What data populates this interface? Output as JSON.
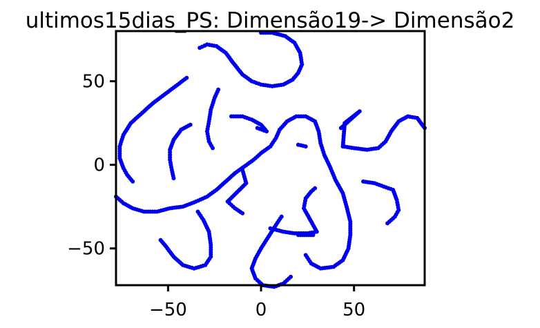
{
  "chart_data": {
    "type": "scatter",
    "title": "ultimos15dias_PS: Dimensão19-> Dimensão2",
    "xlabel": "",
    "ylabel": "",
    "xlim": [
      -78,
      88
    ],
    "ylim": [
      -72,
      80
    ],
    "xticks": [
      -50,
      0,
      50
    ],
    "xtick_labels": [
      "−50",
      "0",
      "50"
    ],
    "yticks": [
      -50,
      0,
      50
    ],
    "ytick_labels": [
      "−50",
      "0",
      "50"
    ],
    "grid": false,
    "legend": "none",
    "point_color": "#0000ee",
    "series": [
      {
        "points": [
          [
            -40,
            52
          ],
          [
            -46,
            47
          ],
          [
            -52,
            42
          ],
          [
            -58,
            37
          ],
          [
            -64,
            31
          ],
          [
            -70,
            25
          ],
          [
            -74,
            18
          ],
          [
            -76,
            11
          ],
          [
            -76,
            4
          ],
          [
            -74,
            -2
          ],
          [
            -72,
            -6
          ],
          [
            -69,
            -10
          ],
          [
            -23,
            45
          ],
          [
            -25,
            40
          ],
          [
            -27,
            33
          ],
          [
            -28,
            26
          ],
          [
            -29,
            20
          ],
          [
            -28,
            14
          ],
          [
            -26,
            10
          ],
          [
            -33,
            70
          ],
          [
            -29,
            72
          ],
          [
            -24,
            71
          ],
          [
            -19,
            67
          ],
          [
            -15,
            61
          ],
          [
            -10,
            54
          ],
          [
            -5,
            50
          ],
          [
            0,
            48
          ],
          [
            6,
            47
          ],
          [
            12,
            48
          ],
          [
            17,
            51
          ],
          [
            20,
            55
          ],
          [
            22,
            60
          ],
          [
            21,
            67
          ],
          [
            18,
            73
          ],
          [
            13,
            77
          ],
          [
            6,
            79
          ],
          [
            0,
            79
          ],
          [
            -38,
            24
          ],
          [
            -43,
            21
          ],
          [
            -47,
            15
          ],
          [
            -49,
            9
          ],
          [
            -49,
            3
          ],
          [
            -48,
            -3
          ],
          [
            -47,
            -8
          ],
          [
            -16,
            29
          ],
          [
            -10,
            29
          ],
          [
            -5,
            27
          ],
          [
            0,
            24
          ],
          [
            3,
            20
          ],
          [
            -2,
            22
          ],
          [
            -78,
            -19
          ],
          [
            -74,
            -23
          ],
          [
            -69,
            -26
          ],
          [
            -63,
            -28
          ],
          [
            -56,
            -28
          ],
          [
            -49,
            -26
          ],
          [
            -42,
            -25
          ],
          [
            -35,
            -22
          ],
          [
            -29,
            -19
          ],
          [
            -24,
            -15
          ],
          [
            -19,
            -10
          ],
          [
            -14,
            -5
          ],
          [
            -9,
            -1
          ],
          [
            -4,
            3
          ],
          [
            0,
            7
          ],
          [
            5,
            11
          ],
          [
            8,
            16
          ],
          [
            10,
            21
          ],
          [
            14,
            26
          ],
          [
            19,
            29
          ],
          [
            24,
            29
          ],
          [
            29,
            26
          ],
          [
            31,
            20
          ],
          [
            32,
            13
          ],
          [
            34,
            6
          ],
          [
            37,
            -1
          ],
          [
            40,
            -9
          ],
          [
            44,
            -17
          ],
          [
            46,
            -25
          ],
          [
            48,
            -34
          ],
          [
            48,
            -42
          ],
          [
            47,
            -50
          ],
          [
            44,
            -57
          ],
          [
            39,
            -61
          ],
          [
            32,
            -62
          ],
          [
            27,
            -59
          ],
          [
            24,
            -54
          ],
          [
            -10,
            -3
          ],
          [
            -9,
            -7
          ],
          [
            -8,
            -11
          ],
          [
            -18,
            -22
          ],
          [
            -14,
            -26
          ],
          [
            -10,
            -29
          ],
          [
            -34,
            -28
          ],
          [
            -31,
            -33
          ],
          [
            -28,
            -40
          ],
          [
            -27,
            -48
          ],
          [
            -27,
            -55
          ],
          [
            -30,
            -60
          ],
          [
            -36,
            -62
          ],
          [
            -42,
            -60
          ],
          [
            -47,
            -55
          ],
          [
            -51,
            -49
          ],
          [
            -54,
            -45
          ],
          [
            11,
            -31
          ],
          [
            8,
            -36
          ],
          [
            4,
            -43
          ],
          [
            0,
            -50
          ],
          [
            -3,
            -56
          ],
          [
            -5,
            -62
          ],
          [
            -3,
            -68
          ],
          [
            1,
            -72
          ],
          [
            7,
            -73
          ],
          [
            12,
            -71
          ],
          [
            16,
            -67
          ],
          [
            5,
            -38
          ],
          [
            12,
            -40
          ],
          [
            18,
            -41
          ],
          [
            25,
            -41
          ],
          [
            30,
            -40
          ],
          [
            23,
            -26
          ],
          [
            24,
            -20
          ],
          [
            27,
            -16
          ],
          [
            29,
            -14
          ],
          [
            28,
            -42
          ],
          [
            20,
            -42
          ],
          [
            20,
            12
          ],
          [
            24,
            11
          ],
          [
            43,
            22
          ],
          [
            48,
            27
          ],
          [
            53,
            32
          ],
          [
            45,
            25
          ],
          [
            44,
            11
          ],
          [
            50,
            10
          ],
          [
            57,
            9
          ],
          [
            63,
            10
          ],
          [
            67,
            14
          ],
          [
            70,
            20
          ],
          [
            74,
            26
          ],
          [
            79,
            29
          ],
          [
            84,
            28
          ],
          [
            88,
            22
          ],
          [
            55,
            -10
          ],
          [
            61,
            -11
          ],
          [
            66,
            -13
          ],
          [
            71,
            -15
          ],
          [
            73,
            -21
          ],
          [
            74,
            -27
          ],
          [
            72,
            -31
          ],
          [
            68,
            -35
          ]
        ]
      }
    ]
  }
}
